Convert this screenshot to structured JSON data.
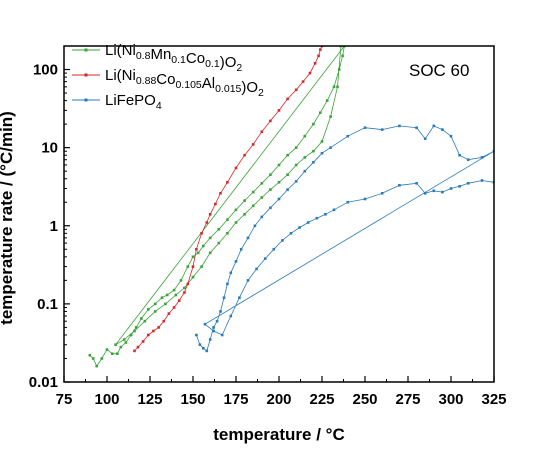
{
  "chart_data": {
    "type": "scatter",
    "title": "",
    "xlabel": "temperature / °C",
    "ylabel": "temperature rate / (°C/min)",
    "xlim": [
      75,
      325
    ],
    "ylim": [
      0.01,
      200
    ],
    "yscale": "log",
    "grid": false,
    "legend_position": "top-left",
    "annotation": "SOC 60",
    "x_ticks": [
      "75",
      "100",
      "125",
      "150",
      "175",
      "200",
      "225",
      "250",
      "275",
      "300",
      "325"
    ],
    "y_ticks": [
      "0.01",
      "0.1",
      "1",
      "10",
      "100"
    ],
    "series": [
      {
        "name": "Li(Ni0.8Mn0.1Co0.1)O2",
        "legend": {
          "base": "Li(Ni",
          "s1": "0.8",
          "m1": "Mn",
          "s2": "0.1",
          "m2": "Co",
          "s3": "0.1",
          "end": ")O",
          "s4": "2"
        },
        "color": "#3aa33a",
        "x": [
          90,
          92,
          94,
          97,
          100,
          103,
          106,
          108,
          111,
          114,
          117,
          120,
          124,
          128,
          132,
          135,
          139,
          143,
          147,
          150,
          153,
          156,
          160,
          165,
          170,
          175,
          180,
          185,
          190,
          195,
          200,
          205,
          210,
          215,
          220,
          224,
          228,
          232,
          235,
          237,
          238,
          105,
          110,
          116,
          122,
          128,
          134,
          140,
          145,
          150,
          155,
          160,
          165,
          170,
          175,
          180,
          185,
          190,
          195,
          200,
          205,
          210,
          215,
          220,
          225,
          230,
          234,
          236
        ],
        "y": [
          0.022,
          0.02,
          0.016,
          0.02,
          0.026,
          0.023,
          0.023,
          0.028,
          0.032,
          0.04,
          0.05,
          0.065,
          0.085,
          0.1,
          0.12,
          0.13,
          0.15,
          0.2,
          0.3,
          0.4,
          0.45,
          0.55,
          0.7,
          0.9,
          1.2,
          1.6,
          2.1,
          2.7,
          3.5,
          4.5,
          6,
          8,
          10,
          14,
          20,
          28,
          40,
          60,
          100,
          150,
          200,
          0.03,
          0.035,
          0.045,
          0.06,
          0.08,
          0.1,
          0.13,
          0.16,
          0.22,
          0.3,
          0.45,
          0.6,
          0.8,
          1.1,
          1.4,
          1.8,
          2.3,
          2.9,
          3.6,
          4.5,
          6,
          7.5,
          9,
          12,
          25,
          60,
          200
        ]
      },
      {
        "name": "Li(Ni0.88Co0.105Al0.015)O2",
        "legend": {
          "base": "Li(Ni",
          "s1": "0.88",
          "m1": "Co",
          "s2": "0.105",
          "m2": "Al",
          "s3": "0.015",
          "end": ")O",
          "s4": "2"
        },
        "color": "#d62828",
        "x": [
          116,
          118,
          121,
          124,
          127,
          130,
          133,
          136,
          139,
          142,
          145,
          147,
          150,
          152,
          155,
          158,
          160,
          163,
          166,
          170,
          175,
          180,
          185,
          190,
          195,
          200,
          205,
          210,
          214,
          218,
          221,
          223,
          224,
          225
        ],
        "y": [
          0.025,
          0.028,
          0.033,
          0.04,
          0.045,
          0.05,
          0.06,
          0.075,
          0.09,
          0.11,
          0.14,
          0.18,
          0.3,
          0.5,
          0.8,
          1.1,
          1.4,
          1.9,
          2.6,
          3.6,
          5.5,
          8,
          11,
          16,
          22,
          30,
          42,
          55,
          70,
          90,
          120,
          150,
          180,
          200
        ]
      },
      {
        "name": "LiFePO4",
        "legend": {
          "base": "LiFePO",
          "s1": "4",
          "m1": "",
          "s2": "",
          "m2": "",
          "s3": "",
          "end": "",
          "s4": ""
        },
        "color": "#2b7bb8",
        "x": [
          152,
          154,
          156,
          158,
          160,
          162,
          164,
          166,
          168,
          170,
          172,
          175,
          178,
          182,
          186,
          190,
          195,
          200,
          205,
          210,
          215,
          220,
          225,
          230,
          240,
          250,
          260,
          270,
          280,
          285,
          290,
          295,
          300,
          305,
          310,
          318,
          325,
          157,
          162,
          167,
          172,
          177,
          182,
          187,
          192,
          197,
          202,
          207,
          212,
          217,
          222,
          227,
          232,
          240,
          250,
          260,
          270,
          280,
          285,
          290,
          295,
          300,
          305,
          310,
          318,
          325
        ],
        "y": [
          0.04,
          0.03,
          0.027,
          0.025,
          0.035,
          0.05,
          0.06,
          0.08,
          0.12,
          0.18,
          0.25,
          0.35,
          0.5,
          0.7,
          1.0,
          1.3,
          1.7,
          2.2,
          2.9,
          3.7,
          5,
          6.5,
          8.5,
          10,
          14,
          18,
          17,
          19,
          18,
          13,
          19,
          17,
          14,
          8,
          7,
          7.5,
          9,
          0.055,
          0.045,
          0.04,
          0.07,
          0.12,
          0.2,
          0.28,
          0.38,
          0.5,
          0.65,
          0.8,
          0.95,
          1.1,
          1.25,
          1.4,
          1.6,
          2.0,
          2.2,
          2.6,
          3.3,
          3.5,
          2.6,
          2.8,
          2.7,
          3.0,
          3.2,
          3.5,
          3.8,
          3.6
        ]
      }
    ]
  }
}
